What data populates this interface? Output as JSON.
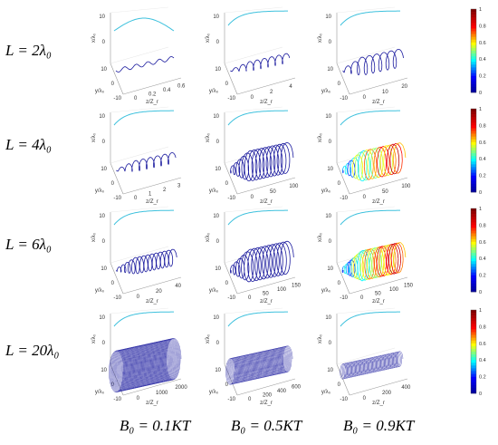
{
  "figure": {
    "row_labels": [
      "L = 2λ₀",
      "L = 4λ₀",
      "L = 6λ₀",
      "L = 20λ₀"
    ],
    "col_labels": [
      "B₀ = 0.1KT",
      "B₀ = 0.5KT",
      "B₀ = 0.9KT"
    ],
    "axis_labels": {
      "x": "x/λ₀",
      "y": "y/λ₀",
      "z": "z/Z_r"
    }
  },
  "colorbar": {
    "ticks": [
      "0",
      "0.2",
      "0.4",
      "0.6",
      "0.8",
      "1"
    ],
    "range": [
      0,
      1
    ],
    "colormap": [
      "#00008f",
      "#0000ff",
      "#00ffff",
      "#ffff00",
      "#ff0000",
      "#800000"
    ]
  },
  "chart_data": [
    {
      "type": "line3d",
      "row": 0,
      "col": 0,
      "L": "2λ₀",
      "B0": "0.1KT",
      "x_ticks": [
        "0",
        "10"
      ],
      "y_ticks": [
        "10",
        "0",
        "-10"
      ],
      "z_ticks": [
        "0",
        "0.2",
        "0.4",
        "0.6"
      ],
      "z_max": 0.6,
      "turns": 5,
      "radius": 0.15,
      "style": "wave",
      "colored": false
    },
    {
      "type": "line3d",
      "row": 0,
      "col": 1,
      "L": "2λ₀",
      "B0": "0.5KT",
      "x_ticks": [
        "0",
        "10"
      ],
      "y_ticks": [
        "10",
        "0",
        "-10"
      ],
      "z_ticks": [
        "0",
        "2",
        "4"
      ],
      "z_max": 4,
      "turns": 8,
      "radius": 0.22,
      "style": "helix",
      "colored": false
    },
    {
      "type": "line3d",
      "row": 0,
      "col": 2,
      "L": "2λ₀",
      "B0": "0.9KT",
      "x_ticks": [
        "0",
        "10"
      ],
      "y_ticks": [
        "10",
        "0",
        "-10"
      ],
      "z_ticks": [
        "0",
        "10",
        "20"
      ],
      "z_max": 20,
      "turns": 8,
      "radius": 0.42,
      "style": "helix",
      "colored": false
    },
    {
      "type": "line3d",
      "row": 1,
      "col": 0,
      "L": "4λ₀",
      "B0": "0.1KT",
      "x_ticks": [
        "0",
        "10"
      ],
      "y_ticks": [
        "10",
        "0",
        "-10"
      ],
      "z_ticks": [
        "0",
        "1",
        "2",
        "3"
      ],
      "z_max": 3,
      "turns": 8,
      "radius": 0.25,
      "style": "helix",
      "colored": false
    },
    {
      "type": "line3d",
      "row": 1,
      "col": 1,
      "L": "4λ₀",
      "B0": "0.5KT",
      "x_ticks": [
        "0",
        "10"
      ],
      "y_ticks": [
        "10",
        "0",
        "-10"
      ],
      "z_ticks": [
        "0",
        "50",
        "100"
      ],
      "z_max": 100,
      "turns": 16,
      "radius": 0.7,
      "style": "coil",
      "colored": false
    },
    {
      "type": "line3d",
      "row": 1,
      "col": 2,
      "L": "4λ₀",
      "B0": "0.9KT",
      "x_ticks": [
        "0",
        "10"
      ],
      "y_ticks": [
        "10",
        "0",
        "-10"
      ],
      "z_ticks": [
        "0",
        "50",
        "100"
      ],
      "z_max": 100,
      "turns": 18,
      "radius": 0.7,
      "style": "coil",
      "colored": true
    },
    {
      "type": "line3d",
      "row": 2,
      "col": 0,
      "L": "6λ₀",
      "B0": "0.1KT",
      "x_ticks": [
        "0",
        "10"
      ],
      "y_ticks": [
        "10",
        "0",
        "-10"
      ],
      "z_ticks": [
        "0",
        "20",
        "40"
      ],
      "z_max": 40,
      "turns": 14,
      "radius": 0.38,
      "style": "coil",
      "colored": false
    },
    {
      "type": "line3d",
      "row": 2,
      "col": 1,
      "L": "6λ₀",
      "B0": "0.5KT",
      "x_ticks": [
        "0",
        "10"
      ],
      "y_ticks": [
        "10",
        "0",
        "-10"
      ],
      "z_ticks": [
        "0",
        "50",
        "100",
        "150"
      ],
      "z_max": 150,
      "turns": 16,
      "radius": 0.75,
      "style": "coil",
      "colored": false
    },
    {
      "type": "line3d",
      "row": 2,
      "col": 2,
      "L": "6λ₀",
      "B0": "0.9KT",
      "x_ticks": [
        "0",
        "10"
      ],
      "y_ticks": [
        "10",
        "0",
        "-10"
      ],
      "z_ticks": [
        "0",
        "50",
        "100",
        "150"
      ],
      "z_max": 150,
      "turns": 24,
      "radius": 0.7,
      "style": "coil",
      "colored": true
    },
    {
      "type": "line3d",
      "row": 3,
      "col": 0,
      "L": "20λ₀",
      "B0": "0.1KT",
      "x_ticks": [
        "0",
        "10"
      ],
      "y_ticks": [
        "10",
        "0",
        "-10"
      ],
      "z_ticks": [
        "0",
        "1000",
        "2000"
      ],
      "z_max": 2000,
      "turns": 70,
      "radius": 0.95,
      "style": "dense",
      "colored": false
    },
    {
      "type": "line3d",
      "row": 3,
      "col": 1,
      "L": "20λ₀",
      "B0": "0.5KT",
      "x_ticks": [
        "0",
        "10"
      ],
      "y_ticks": [
        "10",
        "0",
        "-10"
      ],
      "z_ticks": [
        "0",
        "200",
        "400",
        "600"
      ],
      "z_max": 600,
      "turns": 60,
      "radius": 0.6,
      "style": "dense",
      "colored": false
    },
    {
      "type": "line3d",
      "row": 3,
      "col": 2,
      "L": "20λ₀",
      "B0": "0.9KT",
      "x_ticks": [
        "0",
        "10"
      ],
      "y_ticks": [
        "10",
        "0",
        "-10"
      ],
      "z_ticks": [
        "0",
        "200",
        "400"
      ],
      "z_max": 400,
      "turns": 50,
      "radius": 0.35,
      "style": "dense",
      "colored": false
    }
  ]
}
